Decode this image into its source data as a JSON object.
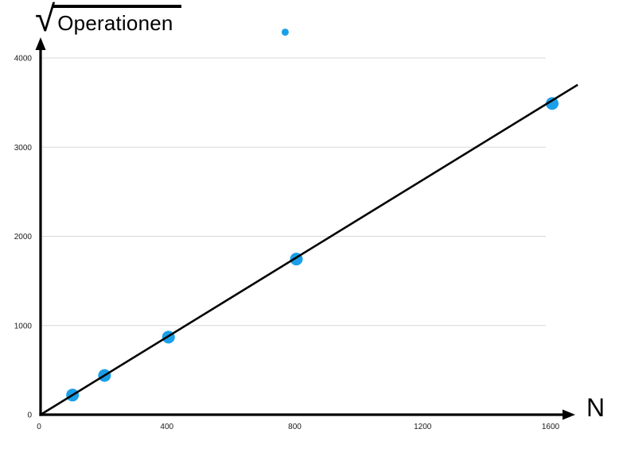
{
  "title": {
    "radical": "√",
    "radicand": "Operationen"
  },
  "x_axis_label": "N",
  "colors": {
    "point": "#1B9FE8",
    "line": "#000000",
    "axis": "#000000",
    "grid": "#D8D8D8",
    "tick_text": "#1A1A1A"
  },
  "chart_data": {
    "type": "scatter",
    "title": "√Operationen",
    "xlabel": "N",
    "ylabel": "√Operationen",
    "xlim": [
      0,
      1672
    ],
    "ylim": [
      0,
      4200
    ],
    "x_ticks": [
      0,
      400,
      800,
      1200,
      1600
    ],
    "y_ticks": [
      0,
      1000,
      2000,
      3000,
      4000
    ],
    "grid": "horizontal-only",
    "legend": "none",
    "series": [
      {
        "name": "sqrt-operations-measurements",
        "type": "scatter",
        "x": [
          100,
          200,
          400,
          800,
          1600
        ],
        "y": [
          220,
          440,
          870,
          1745,
          3490
        ],
        "marker_radius_px": 8
      },
      {
        "name": "linear-fit-line",
        "type": "line",
        "x": [
          0,
          1680
        ],
        "y": [
          0,
          3700
        ]
      }
    ],
    "extra_points": [
      {
        "name": "small-stray-dot",
        "x": 765,
        "y": 4290,
        "marker_radius_px": 4.5
      }
    ]
  }
}
